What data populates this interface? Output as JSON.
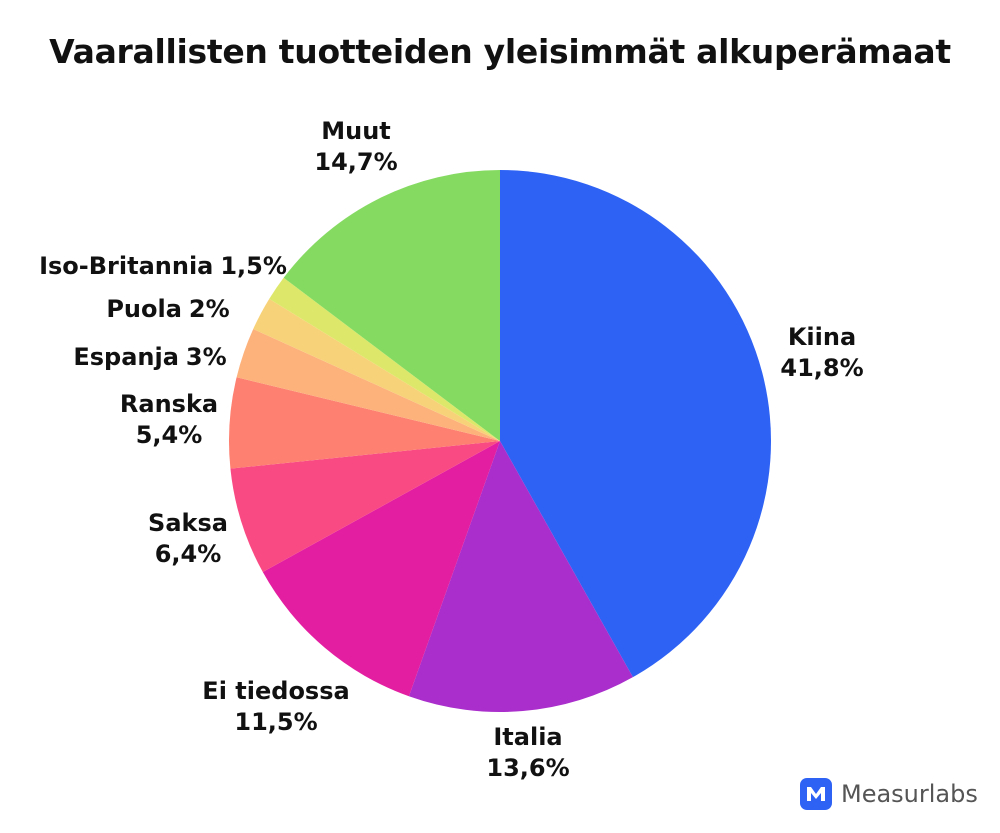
{
  "chart_data": {
    "type": "pie",
    "title": "Vaarallisten tuotteiden yleisimmät alkuperämaat",
    "start": "top",
    "direction": "clockwise",
    "slices": [
      {
        "label": "Kiina",
        "value": 41.8,
        "value_label": "41,8%",
        "color": "#2d62f5"
      },
      {
        "label": "Italia",
        "value": 13.6,
        "value_label": "13,6%",
        "color": "#a92ecb"
      },
      {
        "label": "Ei tiedossa",
        "value": 11.5,
        "value_label": "11,5%",
        "color": "#e31ea0"
      },
      {
        "label": "Saksa",
        "value": 6.4,
        "value_label": "6,4%",
        "color": "#fa4a84"
      },
      {
        "label": "Ranska",
        "value": 5.4,
        "value_label": "5,4%",
        "color": "#fd8070"
      },
      {
        "label": "Espanja",
        "value": 3,
        "value_label": "3%",
        "color": "#fdb27c"
      },
      {
        "label": "Puola",
        "value": 2,
        "value_label": "2%",
        "color": "#f8d278"
      },
      {
        "label": "Iso-Britannia",
        "value": 1.5,
        "value_label": "1,5%",
        "color": "#dde86a"
      },
      {
        "label": "Muut",
        "value": 14.7,
        "value_label": "14,7%",
        "color": "#85db62"
      }
    ]
  },
  "brand": {
    "name": "Measurlabs",
    "color": "#2d62f5"
  }
}
